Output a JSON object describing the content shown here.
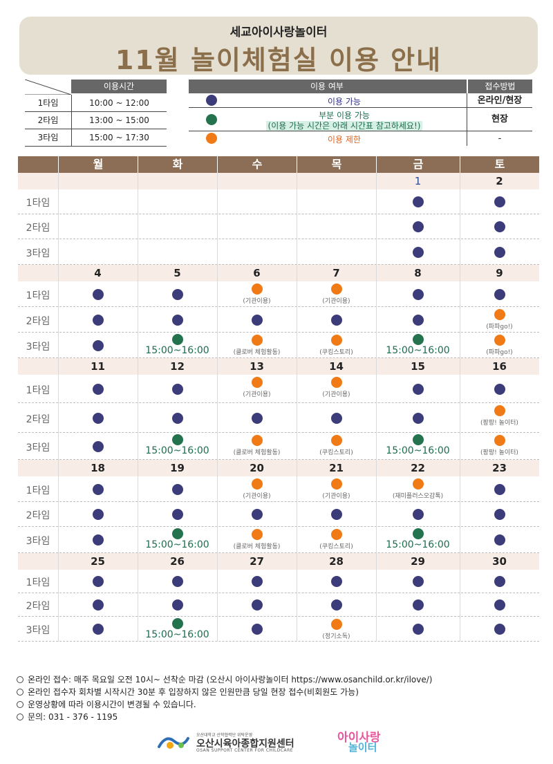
{
  "header": {
    "subtitle": "세교아이사랑놀이터",
    "title": "11월 놀이체험실 이용 안내"
  },
  "timetable": {
    "header": "이용시간",
    "rows": [
      {
        "name": "1타임",
        "time": "10:00 ~ 12:00"
      },
      {
        "name": "2타임",
        "time": "13:00 ~ 15:00"
      },
      {
        "name": "3타임",
        "time": "15:00 ~ 17:30"
      }
    ]
  },
  "legend": {
    "header_status": "이용 여부",
    "header_method": "접수방법",
    "available": {
      "label": "이용 가능",
      "method": "온라인/현장",
      "color": "#3c3c7a"
    },
    "partial": {
      "label": "부분 이용 가능",
      "note": "(이용 가능 시간은 아래 시간표 참고하세요!)",
      "method": "현장",
      "color": "#24734e"
    },
    "limited": {
      "label": "이용 제한",
      "method": "-",
      "color": "#f07a16"
    }
  },
  "calendar": {
    "days": [
      "월",
      "화",
      "수",
      "목",
      "금",
      "토"
    ],
    "slot_labels": [
      "1타임",
      "2타임",
      "3타임"
    ],
    "weeks": [
      {
        "dates": [
          "",
          "",
          "",
          "",
          "1",
          "2"
        ],
        "slots": [
          [
            null,
            null,
            null,
            null,
            {
              "s": "a"
            },
            {
              "s": "a"
            }
          ],
          [
            null,
            null,
            null,
            null,
            {
              "s": "a"
            },
            {
              "s": "a"
            }
          ],
          [
            null,
            null,
            null,
            null,
            {
              "s": "a"
            },
            {
              "s": "a"
            }
          ]
        ]
      },
      {
        "dates": [
          "4",
          "5",
          "6",
          "7",
          "8",
          "9"
        ],
        "slots": [
          [
            {
              "s": "a"
            },
            {
              "s": "a"
            },
            {
              "s": "l",
              "note": "(기관이용)"
            },
            {
              "s": "l",
              "note": "(기관이용)"
            },
            {
              "s": "a"
            },
            {
              "s": "a"
            }
          ],
          [
            {
              "s": "a"
            },
            {
              "s": "a"
            },
            {
              "s": "a"
            },
            {
              "s": "a"
            },
            {
              "s": "a"
            },
            {
              "s": "l",
              "note": "(파파go!)"
            }
          ],
          [
            {
              "s": "a"
            },
            {
              "s": "p",
              "time": "15:00~16:00"
            },
            {
              "s": "l",
              "note": "(클로버 체험활동)"
            },
            {
              "s": "l",
              "note": "(쿠킹스토리)"
            },
            {
              "s": "p",
              "time": "15:00~16:00"
            },
            {
              "s": "l",
              "note": "(파파go!)"
            }
          ]
        ]
      },
      {
        "dates": [
          "11",
          "12",
          "13",
          "14",
          "15",
          "16"
        ],
        "slots": [
          [
            {
              "s": "a"
            },
            {
              "s": "a"
            },
            {
              "s": "l",
              "note": "(기관이용)"
            },
            {
              "s": "l",
              "note": "(기관이용)"
            },
            {
              "s": "a"
            },
            {
              "s": "a"
            }
          ],
          [
            {
              "s": "a"
            },
            {
              "s": "a"
            },
            {
              "s": "a"
            },
            {
              "s": "a"
            },
            {
              "s": "a"
            },
            {
              "s": "l",
              "note": "(팡팡! 놀이터)"
            }
          ],
          [
            {
              "s": "a"
            },
            {
              "s": "p",
              "time": "15:00~16:00"
            },
            {
              "s": "l",
              "note": "(클로버 체험활동)"
            },
            {
              "s": "l",
              "note": "(쿠킹스토리)"
            },
            {
              "s": "p",
              "time": "15:00~16:00"
            },
            {
              "s": "l",
              "note": "(팡팡! 놀이터)"
            }
          ]
        ]
      },
      {
        "dates": [
          "18",
          "19",
          "20",
          "21",
          "22",
          "23"
        ],
        "slots": [
          [
            {
              "s": "a"
            },
            {
              "s": "a"
            },
            {
              "s": "l",
              "note": "(기관이용)"
            },
            {
              "s": "l",
              "note": "(기관이용)"
            },
            {
              "s": "l",
              "note": "(재미플러스오감톡)"
            },
            {
              "s": "a"
            }
          ],
          [
            {
              "s": "a"
            },
            {
              "s": "a"
            },
            {
              "s": "a"
            },
            {
              "s": "a"
            },
            {
              "s": "a"
            },
            {
              "s": "a"
            }
          ],
          [
            {
              "s": "a"
            },
            {
              "s": "p",
              "time": "15:00~16:00"
            },
            {
              "s": "l",
              "note": "(클로버 체험활동)"
            },
            {
              "s": "l",
              "note": "(쿠킹스토리)"
            },
            {
              "s": "p",
              "time": "15:00~16:00"
            },
            {
              "s": "a"
            }
          ]
        ]
      },
      {
        "dates": [
          "25",
          "26",
          "27",
          "28",
          "29",
          "30"
        ],
        "slots": [
          [
            {
              "s": "a"
            },
            {
              "s": "a"
            },
            {
              "s": "a"
            },
            {
              "s": "a"
            },
            {
              "s": "a"
            },
            {
              "s": "a"
            }
          ],
          [
            {
              "s": "a"
            },
            {
              "s": "a"
            },
            {
              "s": "a"
            },
            {
              "s": "a"
            },
            {
              "s": "a"
            },
            {
              "s": "a"
            }
          ],
          [
            {
              "s": "a"
            },
            {
              "s": "p",
              "time": "15:00~16:00"
            },
            {
              "s": "a"
            },
            {
              "s": "l",
              "note": "(정기소독)"
            },
            {
              "s": "a"
            },
            {
              "s": "a"
            }
          ]
        ]
      }
    ]
  },
  "footer": {
    "lines": [
      "온라인 접수: 매주 목요일 오전 10시~ 선착순 마감 (오산시 아이사랑놀이터 https://www.osanchild.or.kr/ilove/)",
      "온라인 접수자 회차별 시작시간 30분 후 입장하지 않은 인원만큼 당일 현장 접수(비회원도 가능)",
      "운영상황에 따라 이용시간이 변경될 수 있습니다.",
      "문의: 031 - 376 - 1195"
    ]
  },
  "logos": {
    "org_top": "오산대학교 산학협력단 위탁운영",
    "org_name": "오산시육아종합지원센터",
    "org_en": "OSAN SUPPORT CENTER FOR CHILDCARE",
    "brand_line1": "아이사랑",
    "brand_line2": "놀이터"
  }
}
